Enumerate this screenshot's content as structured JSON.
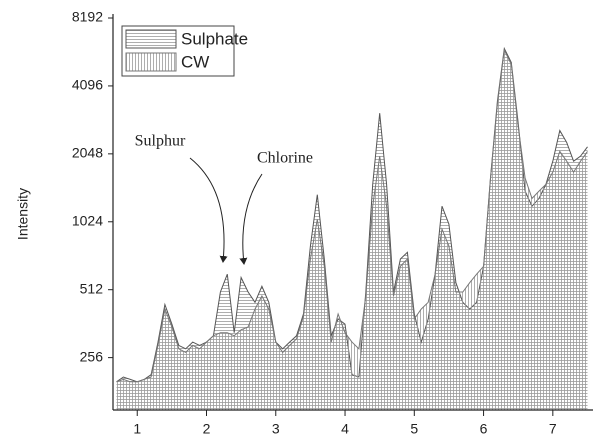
{
  "chart_data": {
    "type": "area",
    "y_label": "Intensity",
    "log_base": 2,
    "xlim": [
      0.65,
      7.58
    ],
    "xticks": [
      1,
      2,
      3,
      4,
      5,
      6,
      7
    ],
    "ylim": [
      150,
      8192
    ],
    "yticks": [
      256,
      512,
      1024,
      2048,
      4096,
      8192
    ],
    "x": [
      0.7,
      0.8,
      0.9,
      1.0,
      1.1,
      1.2,
      1.3,
      1.4,
      1.5,
      1.6,
      1.7,
      1.8,
      1.9,
      2.0,
      2.1,
      2.2,
      2.3,
      2.4,
      2.5,
      2.6,
      2.7,
      2.8,
      2.9,
      3.0,
      3.1,
      3.2,
      3.3,
      3.4,
      3.5,
      3.6,
      3.7,
      3.8,
      3.9,
      4.0,
      4.1,
      4.2,
      4.3,
      4.4,
      4.5,
      4.6,
      4.7,
      4.8,
      4.9,
      5.0,
      5.1,
      5.2,
      5.3,
      5.4,
      5.5,
      5.6,
      5.7,
      5.8,
      5.9,
      6.0,
      6.1,
      6.2,
      6.3,
      6.4,
      6.5,
      6.6,
      6.7,
      6.8,
      6.9,
      7.0,
      7.1,
      7.2,
      7.3,
      7.4,
      7.5
    ],
    "series": [
      {
        "name": "Sulphate",
        "color": "#555555",
        "hatch": "horizontal",
        "values": [
          200,
          210,
          205,
          200,
          205,
          215,
          300,
          440,
          360,
          290,
          280,
          300,
          290,
          300,
          320,
          500,
          600,
          330,
          580,
          500,
          450,
          530,
          450,
          300,
          280,
          300,
          320,
          400,
          800,
          1350,
          700,
          320,
          380,
          360,
          215,
          210,
          500,
          1500,
          3100,
          1500,
          500,
          700,
          750,
          400,
          300,
          380,
          600,
          1200,
          1000,
          550,
          450,
          420,
          450,
          650,
          1600,
          3500,
          6000,
          5200,
          2800,
          1400,
          1200,
          1300,
          1500,
          1900,
          2600,
          2300,
          1900,
          2000,
          2200
        ]
      },
      {
        "name": "CW",
        "color": "#777777",
        "hatch": "vertical",
        "values": [
          200,
          205,
          200,
          200,
          205,
          210,
          290,
          420,
          350,
          280,
          270,
          290,
          280,
          300,
          320,
          330,
          330,
          320,
          340,
          350,
          420,
          480,
          420,
          300,
          270,
          290,
          310,
          390,
          700,
          1050,
          650,
          300,
          400,
          330,
          300,
          280,
          480,
          1200,
          2000,
          1200,
          480,
          650,
          700,
          380,
          420,
          450,
          600,
          950,
          800,
          500,
          500,
          550,
          600,
          650,
          1600,
          3400,
          5900,
          5100,
          2700,
          1600,
          1300,
          1400,
          1500,
          1700,
          2100,
          1900,
          1700,
          1900,
          2100
        ]
      }
    ],
    "annotations": [
      {
        "text": "Sulphur"
      },
      {
        "text": "Chlorine"
      }
    ],
    "legend": "upper left"
  }
}
